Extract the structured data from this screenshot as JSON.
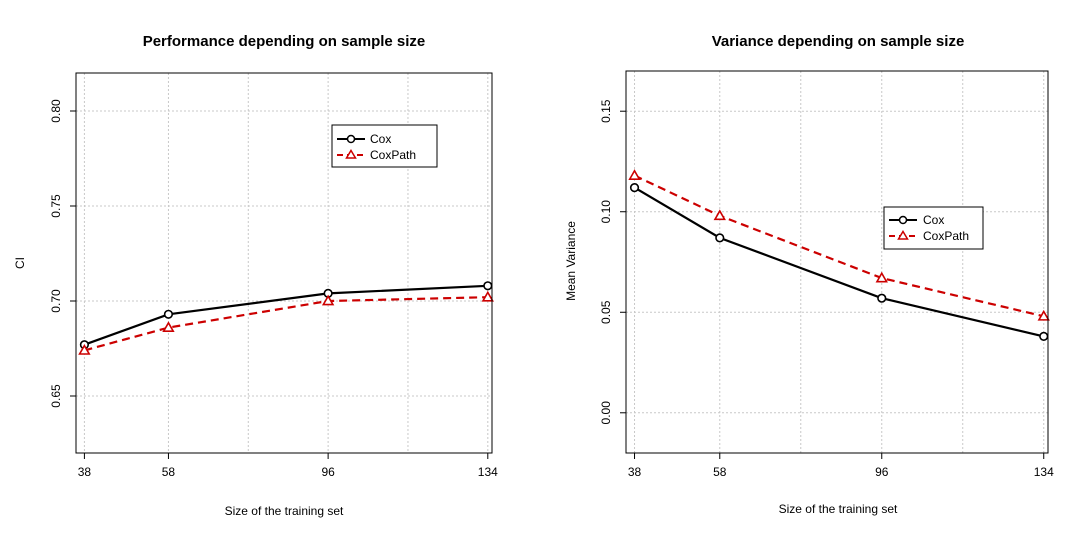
{
  "colors": {
    "cox": "#000000",
    "coxpath": "#cc0000",
    "grid": "#c8c8c8",
    "frame": "#000000"
  },
  "chart_data": [
    {
      "type": "line",
      "title": "Performance depending on sample size",
      "xlabel": "Size of the training set",
      "ylabel": "CI",
      "x": [
        38,
        58,
        96,
        134
      ],
      "xticks": [
        "38",
        "58",
        "96",
        "134"
      ],
      "xlim": [
        36,
        135
      ],
      "ylim": [
        0.62,
        0.82
      ],
      "yticks": [
        0.65,
        0.7,
        0.75,
        0.8
      ],
      "ytick_labels": [
        "0.65",
        "0.70",
        "0.75",
        "0.80"
      ],
      "grid": true,
      "legend_position": "top-right",
      "series": [
        {
          "name": "Cox",
          "values": [
            0.677,
            0.693,
            0.704,
            0.708
          ],
          "marker": "circle",
          "line": "solid"
        },
        {
          "name": "CoxPath",
          "values": [
            0.674,
            0.686,
            0.7,
            0.702
          ],
          "marker": "triangle",
          "line": "dashed"
        }
      ]
    },
    {
      "type": "line",
      "title": "Variance depending on sample size",
      "xlabel": "Size of the training set",
      "ylabel": "Mean Variance",
      "x": [
        38,
        58,
        96,
        134
      ],
      "xticks": [
        "38",
        "58",
        "96",
        "134"
      ],
      "xlim": [
        36,
        135
      ],
      "ylim": [
        -0.02,
        0.17
      ],
      "yticks": [
        0.0,
        0.05,
        0.1,
        0.15
      ],
      "ytick_labels": [
        "0.00",
        "0.05",
        "0.10",
        "0.15"
      ],
      "grid": true,
      "legend_position": "center-right",
      "series": [
        {
          "name": "Cox",
          "values": [
            0.112,
            0.087,
            0.057,
            0.038
          ],
          "marker": "circle",
          "line": "solid"
        },
        {
          "name": "CoxPath",
          "values": [
            0.118,
            0.098,
            0.067,
            0.048
          ],
          "marker": "triangle",
          "line": "dashed"
        }
      ]
    }
  ]
}
